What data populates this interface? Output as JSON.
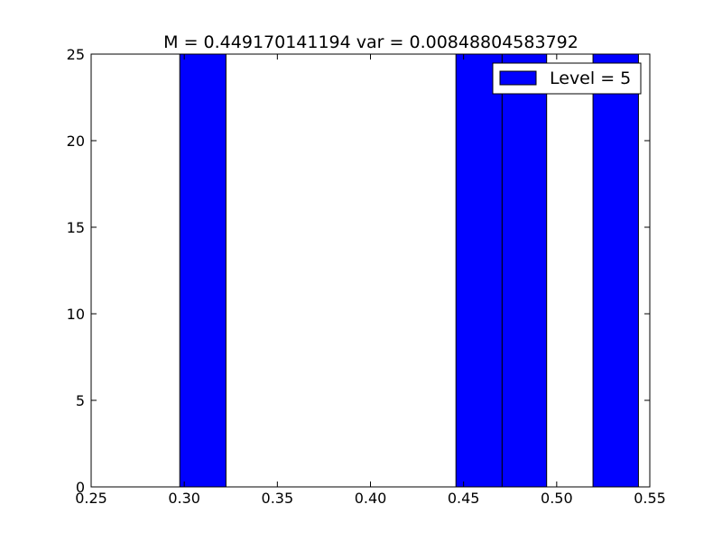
{
  "chart_data": {
    "type": "bar",
    "title": "M = 0.449170141194 var = 0.00848804583792",
    "xlabel": "",
    "ylabel": "",
    "xlim": [
      0.25,
      0.55
    ],
    "ylim": [
      0,
      25
    ],
    "x_ticks": [
      "0.25",
      "0.30",
      "0.35",
      "0.40",
      "0.45",
      "0.50",
      "0.55"
    ],
    "y_ticks": [
      "0",
      "5",
      "10",
      "15",
      "20",
      "25"
    ],
    "bar_color": "#0000ff",
    "series": [
      {
        "name": "Level = 5",
        "bins": [
          {
            "x0": 0.2976,
            "x1": 0.3224,
            "value": 25
          },
          {
            "x0": 0.4459,
            "x1": 0.4707,
            "value": 25
          },
          {
            "x0": 0.4707,
            "x1": 0.4946,
            "value": 25
          },
          {
            "x0": 0.5195,
            "x1": 0.5439,
            "value": 25
          }
        ]
      }
    ],
    "legend": {
      "position": "top-right"
    },
    "grid": false
  }
}
